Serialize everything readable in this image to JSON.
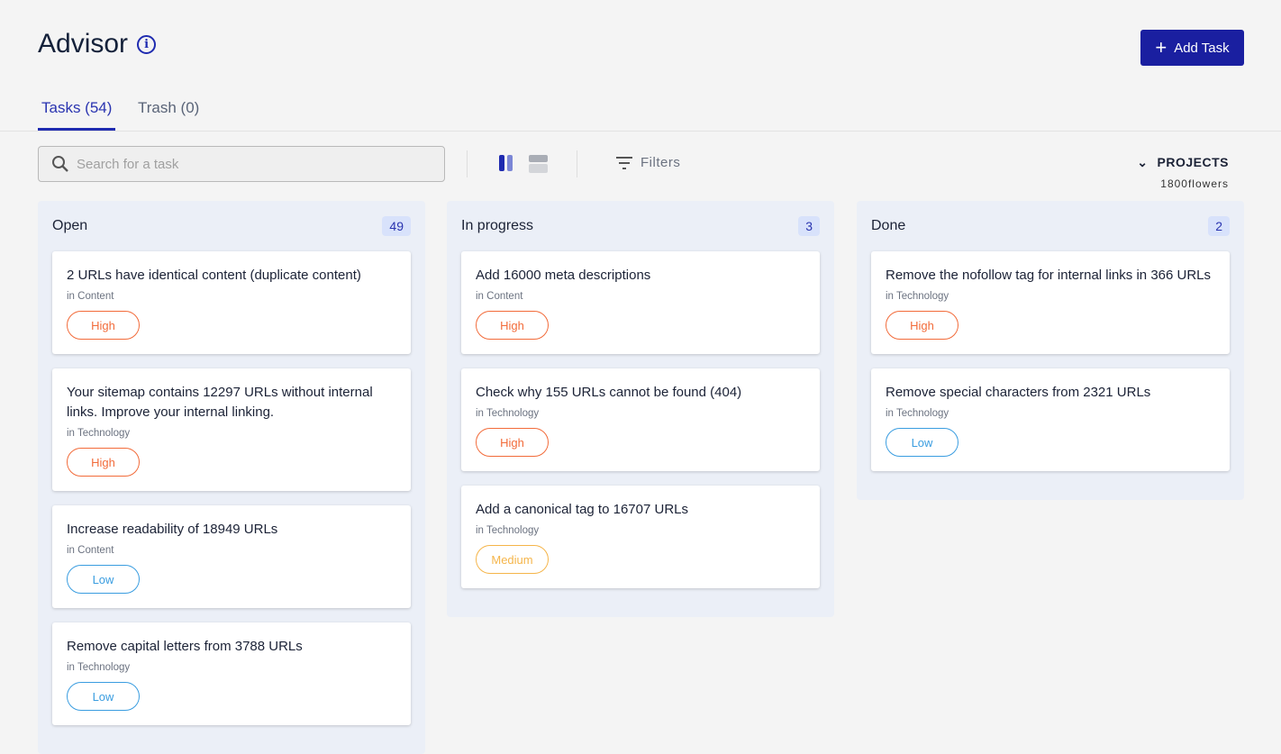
{
  "header": {
    "title": "Advisor",
    "add_task_label": "Add Task"
  },
  "tabs": [
    {
      "label": "Tasks (54)",
      "active": true
    },
    {
      "label": "Trash (0)",
      "active": false
    }
  ],
  "toolbar": {
    "search_placeholder": "Search for a task",
    "filters_label": "Filters",
    "projects_label": "PROJECTS",
    "project_name": "1800flowers",
    "view_mode": "board"
  },
  "colors": {
    "accent": "#1a1fa0",
    "High": "#f26b3a",
    "Medium": "#f5b54a",
    "Low": "#3a9de0"
  },
  "columns": [
    {
      "name": "Open",
      "count": "49",
      "cards": [
        {
          "title": "2 URLs have identical content (duplicate content)",
          "category": "in Content",
          "priority": "High"
        },
        {
          "title": "Your sitemap contains 12297 URLs without internal links. Improve your internal linking.",
          "category": "in Technology",
          "priority": "High"
        },
        {
          "title": "Increase readability of 18949 URLs",
          "category": "in Content",
          "priority": "Low"
        },
        {
          "title": "Remove capital letters from 3788 URLs",
          "category": "in Technology",
          "priority": "Low"
        }
      ]
    },
    {
      "name": "In progress",
      "count": "3",
      "cards": [
        {
          "title": "Add 16000 meta descriptions",
          "category": "in Content",
          "priority": "High"
        },
        {
          "title": "Check why 155 URLs cannot be found (404)",
          "category": "in Technology",
          "priority": "High"
        },
        {
          "title": "Add a canonical tag to 16707 URLs",
          "category": "in Technology",
          "priority": "Medium"
        }
      ]
    },
    {
      "name": "Done",
      "count": "2",
      "cards": [
        {
          "title": "Remove the nofollow tag for internal links in 366 URLs",
          "category": "in Technology",
          "priority": "High"
        },
        {
          "title": "Remove special characters from 2321 URLs",
          "category": "in Technology",
          "priority": "Low"
        }
      ]
    }
  ]
}
